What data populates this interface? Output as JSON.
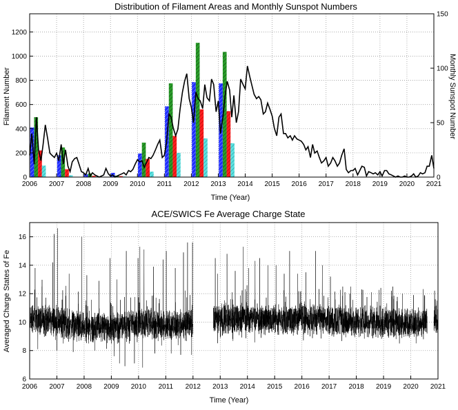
{
  "chart_data": [
    {
      "type": "bar",
      "title": "Distribution of Filament Areas and Monthly Sunspot Numbers",
      "xlabel": "Time (Year)",
      "ylabel": "Filament Number",
      "y2label": "Monthly Sunspot Number",
      "xlim": [
        2006,
        2021
      ],
      "ylim": [
        0,
        1350
      ],
      "y2lim": [
        0,
        150
      ],
      "xticks": [
        "2006",
        "2007",
        "2008",
        "2009",
        "2010",
        "2011",
        "2012",
        "2013",
        "2014",
        "2015",
        "2016",
        "2017",
        "2018",
        "2019",
        "2020",
        "2021"
      ],
      "yticks": [
        "0",
        "200",
        "400",
        "600",
        "800",
        "1000",
        "1200"
      ],
      "y2ticks": [
        "0",
        "50",
        "100",
        "150"
      ],
      "grid": true,
      "years": [
        2006,
        2007,
        2008,
        2009,
        2010,
        2011,
        2012,
        2013
      ],
      "series": [
        {
          "color": "#1f2bff",
          "hatch": "blue",
          "values": [
            410,
            180,
            25,
            35,
            195,
            585,
            785,
            775
          ]
        },
        {
          "color": "#2a9d2a",
          "hatch": "green",
          "values": [
            495,
            245,
            30,
            12,
            285,
            775,
            1110,
            1035
          ]
        },
        {
          "color": "#ff2020",
          "hatch": "red",
          "values": [
            220,
            65,
            10,
            8,
            150,
            340,
            560,
            545
          ]
        },
        {
          "color": "#4fd7d7",
          "hatch": "cyan",
          "values": [
            95,
            15,
            5,
            5,
            45,
            200,
            320,
            280
          ]
        }
      ],
      "sunspot": {
        "color": "#000000",
        "points": [
          [
            2006.0,
            20
          ],
          [
            2006.08,
            40
          ],
          [
            2006.17,
            12
          ],
          [
            2006.25,
            55
          ],
          [
            2006.33,
            25
          ],
          [
            2006.42,
            15
          ],
          [
            2006.5,
            30
          ],
          [
            2006.58,
            48
          ],
          [
            2006.67,
            35
          ],
          [
            2006.75,
            22
          ],
          [
            2006.83,
            20
          ],
          [
            2006.92,
            18
          ],
          [
            2007.0,
            22
          ],
          [
            2007.08,
            15
          ],
          [
            2007.17,
            30
          ],
          [
            2007.25,
            12
          ],
          [
            2007.33,
            25
          ],
          [
            2007.42,
            10
          ],
          [
            2007.5,
            5
          ],
          [
            2007.58,
            14
          ],
          [
            2007.67,
            17
          ],
          [
            2007.75,
            18
          ],
          [
            2007.83,
            12
          ],
          [
            2007.92,
            5
          ],
          [
            2008.0,
            4
          ],
          [
            2008.08,
            2
          ],
          [
            2008.17,
            8
          ],
          [
            2008.25,
            1
          ],
          [
            2008.33,
            4
          ],
          [
            2008.42,
            2
          ],
          [
            2008.5,
            1
          ],
          [
            2008.58,
            0
          ],
          [
            2008.67,
            1
          ],
          [
            2008.75,
            2
          ],
          [
            2008.83,
            8
          ],
          [
            2008.92,
            3
          ],
          [
            2009.0,
            1
          ],
          [
            2009.08,
            2
          ],
          [
            2009.17,
            0
          ],
          [
            2009.25,
            1
          ],
          [
            2009.33,
            2
          ],
          [
            2009.42,
            3
          ],
          [
            2009.5,
            4
          ],
          [
            2009.58,
            2
          ],
          [
            2009.67,
            6
          ],
          [
            2009.75,
            5
          ],
          [
            2009.83,
            7
          ],
          [
            2009.92,
            12
          ],
          [
            2010.0,
            16
          ],
          [
            2010.08,
            14
          ],
          [
            2010.17,
            15
          ],
          [
            2010.25,
            9
          ],
          [
            2010.33,
            13
          ],
          [
            2010.42,
            18
          ],
          [
            2010.5,
            17
          ],
          [
            2010.58,
            20
          ],
          [
            2010.67,
            25
          ],
          [
            2010.75,
            30
          ],
          [
            2010.83,
            34
          ],
          [
            2010.92,
            18
          ],
          [
            2011.0,
            20
          ],
          [
            2011.08,
            32
          ],
          [
            2011.17,
            58
          ],
          [
            2011.25,
            55
          ],
          [
            2011.33,
            45
          ],
          [
            2011.42,
            38
          ],
          [
            2011.5,
            44
          ],
          [
            2011.58,
            62
          ],
          [
            2011.67,
            78
          ],
          [
            2011.75,
            88
          ],
          [
            2011.83,
            95
          ],
          [
            2011.92,
            72
          ],
          [
            2012.0,
            64
          ],
          [
            2012.08,
            50
          ],
          [
            2012.17,
            78
          ],
          [
            2012.25,
            72
          ],
          [
            2012.33,
            70
          ],
          [
            2012.42,
            63
          ],
          [
            2012.5,
            85
          ],
          [
            2012.58,
            73
          ],
          [
            2012.67,
            70
          ],
          [
            2012.75,
            90
          ],
          [
            2012.83,
            85
          ],
          [
            2012.92,
            60
          ],
          [
            2013.0,
            70
          ],
          [
            2013.08,
            40
          ],
          [
            2013.17,
            55
          ],
          [
            2013.25,
            74
          ],
          [
            2013.33,
            88
          ],
          [
            2013.42,
            80
          ],
          [
            2013.5,
            55
          ],
          [
            2013.58,
            75
          ],
          [
            2013.67,
            50
          ],
          [
            2013.75,
            60
          ],
          [
            2013.83,
            90
          ],
          [
            2013.92,
            85
          ],
          [
            2014.0,
            81
          ],
          [
            2014.08,
            102
          ],
          [
            2014.17,
            92
          ],
          [
            2014.25,
            84
          ],
          [
            2014.33,
            76
          ],
          [
            2014.42,
            72
          ],
          [
            2014.5,
            74
          ],
          [
            2014.58,
            71
          ],
          [
            2014.67,
            58
          ],
          [
            2014.75,
            60
          ],
          [
            2014.83,
            68
          ],
          [
            2014.92,
            62
          ],
          [
            2015.0,
            56
          ],
          [
            2015.08,
            45
          ],
          [
            2015.17,
            38
          ],
          [
            2015.25,
            55
          ],
          [
            2015.33,
            58
          ],
          [
            2015.42,
            40
          ],
          [
            2015.5,
            40
          ],
          [
            2015.58,
            36
          ],
          [
            2015.67,
            38
          ],
          [
            2015.75,
            34
          ],
          [
            2015.83,
            38
          ],
          [
            2015.92,
            35
          ],
          [
            2016.0,
            34
          ],
          [
            2016.08,
            33
          ],
          [
            2016.17,
            30
          ],
          [
            2016.25,
            25
          ],
          [
            2016.33,
            28
          ],
          [
            2016.42,
            18
          ],
          [
            2016.5,
            30
          ],
          [
            2016.58,
            22
          ],
          [
            2016.67,
            24
          ],
          [
            2016.75,
            18
          ],
          [
            2016.83,
            13
          ],
          [
            2016.92,
            15
          ],
          [
            2017.0,
            18
          ],
          [
            2017.08,
            10
          ],
          [
            2017.17,
            13
          ],
          [
            2017.25,
            18
          ],
          [
            2017.33,
            15
          ],
          [
            2017.42,
            10
          ],
          [
            2017.5,
            13
          ],
          [
            2017.58,
            20
          ],
          [
            2017.67,
            26
          ],
          [
            2017.75,
            7
          ],
          [
            2017.83,
            4
          ],
          [
            2017.92,
            6
          ],
          [
            2018.0,
            6
          ],
          [
            2018.08,
            8
          ],
          [
            2018.17,
            2
          ],
          [
            2018.25,
            6
          ],
          [
            2018.33,
            10
          ],
          [
            2018.42,
            9
          ],
          [
            2018.5,
            1
          ],
          [
            2018.58,
            5
          ],
          [
            2018.67,
            4
          ],
          [
            2018.75,
            3
          ],
          [
            2018.83,
            4
          ],
          [
            2018.92,
            2
          ],
          [
            2019.0,
            5
          ],
          [
            2019.08,
            1
          ],
          [
            2019.17,
            6
          ],
          [
            2019.25,
            6
          ],
          [
            2019.33,
            3
          ],
          [
            2019.42,
            2
          ],
          [
            2019.5,
            1
          ],
          [
            2019.58,
            0
          ],
          [
            2019.67,
            1
          ],
          [
            2019.75,
            0
          ],
          [
            2019.83,
            0
          ],
          [
            2019.92,
            1
          ],
          [
            2020.0,
            0
          ],
          [
            2020.08,
            0
          ],
          [
            2020.17,
            1
          ],
          [
            2020.25,
            3
          ],
          [
            2020.33,
            0
          ],
          [
            2020.42,
            1
          ],
          [
            2020.5,
            4
          ],
          [
            2020.58,
            3
          ],
          [
            2020.67,
            4
          ],
          [
            2020.75,
            10
          ],
          [
            2020.83,
            10
          ],
          [
            2020.92,
            20
          ],
          [
            2021.0,
            8
          ]
        ]
      }
    },
    {
      "type": "line",
      "title": "ACE/SWICS Fe Average Charge State",
      "xlabel": "Time (Year)",
      "ylabel": "Averaged Charge States of Fe",
      "xlim": [
        2006,
        2021
      ],
      "ylim": [
        6,
        17
      ],
      "xticks": [
        "2006",
        "2007",
        "2008",
        "2009",
        "2010",
        "2011",
        "2012",
        "2013",
        "2014",
        "2015",
        "2016",
        "2017",
        "2018",
        "2019",
        "2020",
        "2021"
      ],
      "yticks": [
        "6",
        "8",
        "10",
        "12",
        "14",
        "16"
      ],
      "grid": true,
      "color": "#000000",
      "segments": [
        {
          "start": 2006.0,
          "end": 2012.0,
          "base": [
            [
              2006.0,
              10.3
            ],
            [
              2007.0,
              10.0
            ],
            [
              2008.0,
              9.6
            ],
            [
              2009.0,
              9.6
            ],
            [
              2010.0,
              9.9
            ],
            [
              2011.0,
              9.8
            ],
            [
              2012.0,
              9.8
            ]
          ]
        },
        {
          "start": 2012.75,
          "end": 2020.6,
          "base": [
            [
              2012.75,
              10.2
            ],
            [
              2014.0,
              10.3
            ],
            [
              2015.0,
              10.2
            ],
            [
              2016.0,
              10.2
            ],
            [
              2017.0,
              10.1
            ],
            [
              2018.0,
              10.0
            ],
            [
              2019.0,
              10.0
            ],
            [
              2020.6,
              9.9
            ]
          ]
        },
        {
          "start": 2020.85,
          "end": 2021.0,
          "base": [
            [
              2020.85,
              10.1
            ],
            [
              2021.0,
              10.1
            ]
          ]
        }
      ],
      "spikes": [
        [
          2006.2,
          13.8
        ],
        [
          2006.45,
          12.5
        ],
        [
          2006.85,
          14.2
        ],
        [
          2006.9,
          16.2
        ],
        [
          2007.03,
          16.6
        ],
        [
          2007.45,
          13.4
        ],
        [
          2007.92,
          16.0
        ],
        [
          2008.1,
          13.3
        ],
        [
          2008.55,
          12.9
        ],
        [
          2008.95,
          14.5
        ],
        [
          2009.2,
          13.0
        ],
        [
          2009.55,
          15.0
        ],
        [
          2009.98,
          14.5
        ],
        [
          2010.05,
          15.3
        ],
        [
          2010.2,
          15.1
        ],
        [
          2010.55,
          13.9
        ],
        [
          2010.9,
          14.4
        ],
        [
          2011.02,
          15.0
        ],
        [
          2011.35,
          13.8
        ],
        [
          2011.65,
          14.9
        ],
        [
          2011.8,
          15.6
        ],
        [
          2011.98,
          15.6
        ],
        [
          2012.82,
          14.5
        ],
        [
          2012.9,
          13.4
        ],
        [
          2013.25,
          14.8
        ],
        [
          2013.55,
          13.6
        ],
        [
          2013.85,
          15.3
        ],
        [
          2014.05,
          13.8
        ],
        [
          2014.28,
          14.3
        ],
        [
          2014.45,
          14.5
        ],
        [
          2014.75,
          14.0
        ],
        [
          2015.05,
          14.0
        ],
        [
          2015.35,
          13.4
        ],
        [
          2015.55,
          15.0
        ],
        [
          2015.85,
          13.4
        ],
        [
          2016.15,
          13.5
        ],
        [
          2016.5,
          15.0
        ],
        [
          2016.75,
          14.0
        ],
        [
          2017.05,
          13.2
        ],
        [
          2017.5,
          12.5
        ],
        [
          2017.8,
          12.5
        ],
        [
          2018.2,
          12.3
        ],
        [
          2018.55,
          12.1
        ],
        [
          2018.9,
          12.4
        ],
        [
          2019.3,
          11.8
        ],
        [
          2019.7,
          12.0
        ],
        [
          2020.1,
          11.9
        ],
        [
          2020.5,
          11.9
        ],
        [
          2020.9,
          11.6
        ]
      ],
      "dips": [
        [
          2006.3,
          8.1
        ],
        [
          2007.0,
          8.0
        ],
        [
          2007.6,
          7.9
        ],
        [
          2008.4,
          8.0
        ],
        [
          2009.1,
          7.6
        ],
        [
          2009.3,
          7.1
        ],
        [
          2009.5,
          6.9
        ],
        [
          2009.85,
          7.1
        ],
        [
          2010.15,
          6.8
        ],
        [
          2010.6,
          7.8
        ],
        [
          2011.2,
          7.8
        ],
        [
          2011.55,
          7.7
        ],
        [
          2011.95,
          7.7
        ],
        [
          2013.0,
          8.9
        ],
        [
          2014.5,
          8.9
        ],
        [
          2016.3,
          9.0
        ],
        [
          2018.0,
          9.1
        ],
        [
          2019.6,
          9.1
        ]
      ]
    }
  ]
}
